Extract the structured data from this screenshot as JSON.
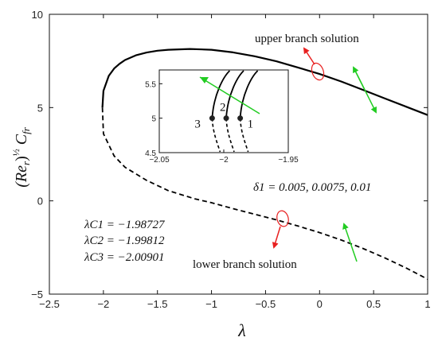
{
  "chart_data": {
    "type": "line",
    "xlabel": "λ",
    "ylabel": "(Re_r)^{1/2} C_fr",
    "xlim": [
      -2.5,
      1
    ],
    "ylim": [
      -5,
      10
    ],
    "xticks": [
      "−2.5",
      "−2",
      "−1.5",
      "−1",
      "−0.5",
      "0",
      "0.5",
      "1"
    ],
    "yticks": [
      "10",
      "5",
      "0",
      "−5"
    ],
    "grid": false,
    "series": [
      {
        "branch": "upper",
        "style": "solid",
        "x": [
          -2.009,
          -2.0,
          -1.95,
          -1.9,
          -1.85,
          -1.8,
          -1.7,
          -1.6,
          -1.5,
          -1.4,
          -1.2,
          -1.0,
          -0.8,
          -0.6,
          -0.4,
          -0.2,
          0.0,
          0.2,
          0.4,
          0.6,
          0.8,
          1.0
        ],
        "y": [
          5.0,
          5.9,
          6.7,
          7.1,
          7.35,
          7.55,
          7.8,
          7.95,
          8.05,
          8.1,
          8.14,
          8.1,
          7.96,
          7.75,
          7.48,
          7.15,
          6.8,
          6.4,
          5.95,
          5.5,
          5.05,
          4.6
        ]
      },
      {
        "branch": "lower",
        "style": "dashed",
        "x": [
          -2.009,
          -2.0,
          -1.9,
          -1.8,
          -1.6,
          -1.4,
          -1.15,
          -1.0,
          -0.8,
          -0.6,
          -0.4,
          -0.2,
          0.0,
          0.2,
          0.4,
          0.6,
          0.8,
          1.0
        ],
        "y": [
          5.0,
          3.6,
          2.4,
          1.8,
          1.1,
          0.55,
          0.1,
          -0.1,
          -0.42,
          -0.72,
          -1.02,
          -1.35,
          -1.7,
          -2.1,
          -2.55,
          -3.05,
          -3.6,
          -4.2
        ]
      }
    ],
    "inset": {
      "xlim": [
        -2.05,
        -1.95
      ],
      "ylim": [
        4.5,
        5.7
      ],
      "xticks": [
        "−2.05",
        "−2",
        "−1.95"
      ],
      "yticks": [
        "5.5",
        "5",
        "4.5"
      ],
      "critical_points": [
        {
          "label": "1",
          "x": -1.98727,
          "y": 5.0
        },
        {
          "label": "2",
          "x": -1.99812,
          "y": 5.0
        },
        {
          "label": "3",
          "x": -2.00901,
          "y": 5.0
        }
      ]
    },
    "annotations": {
      "upper": "upper branch solution",
      "lower": "lower branch solution",
      "delta": "δ1 = 0.005, 0.0075, 0.01",
      "lc1": "λC1 = −1.98727",
      "lc2": "λC2 = −1.99812",
      "lc3": "λC3 = −2.00901"
    },
    "colors": {
      "line": "#000000",
      "arrow_red": "#e82020",
      "arrow_green": "#22cc22",
      "ellipse": "#e82020"
    }
  }
}
